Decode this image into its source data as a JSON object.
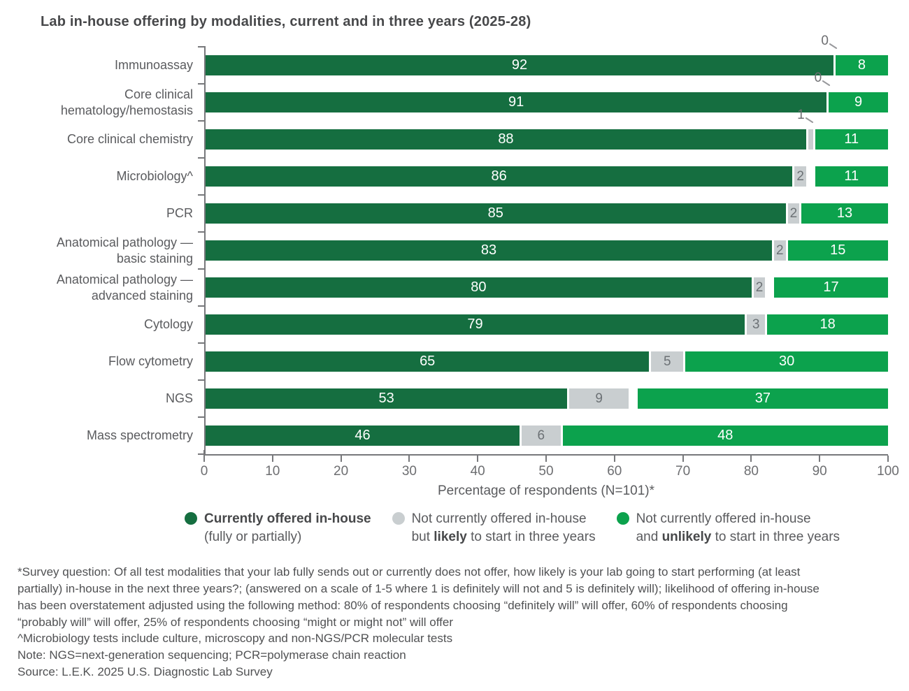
{
  "title": "Lab in-house offering by modalities, current and in three years (2025-28)",
  "chart_data": {
    "type": "bar",
    "orientation": "horizontal",
    "stacked": true,
    "title": "Lab in-house offering by modalities, current and in three years (2025-28)",
    "categories": [
      "Immunoassay",
      "Core clinical\nhematology/hemostasis",
      "Core clinical chemistry",
      "Microbiology^",
      "PCR",
      "Anatomical pathology —\nbasic staining",
      "Anatomical pathology —\nadvanced staining",
      "Cytology",
      "Flow cytometry",
      "NGS",
      "Mass spectrometry"
    ],
    "series": [
      {
        "name": "Currently offered in-house (fully or partially)",
        "color": "#156e40",
        "values": [
          92,
          91,
          88,
          86,
          85,
          83,
          80,
          79,
          65,
          53,
          46
        ]
      },
      {
        "name": "Not currently offered in-house but likely to start in three years",
        "color": "#c9ced0",
        "values": [
          0,
          0,
          1,
          2,
          2,
          2,
          2,
          3,
          5,
          9,
          6
        ]
      },
      {
        "name": "Not currently offered in-house and unlikely to start in three years",
        "color": "#0ca24d",
        "values": [
          8,
          9,
          11,
          11,
          13,
          15,
          17,
          18,
          30,
          37,
          48
        ]
      }
    ],
    "xlabel": "Percentage of respondents (N=101)*",
    "xlim": [
      0,
      100
    ],
    "xticks": [
      0,
      10,
      20,
      30,
      40,
      50,
      60,
      70,
      80,
      90,
      100
    ],
    "grid": false,
    "legend_position": "bottom",
    "value_labels": "inside segments; mid-series values below 2 shown as gray callouts above the bar",
    "small_value_callouts": [
      {
        "category": "Immunoassay",
        "value": 0
      },
      {
        "category": "Core clinical hematology/hemostasis",
        "value": 0
      },
      {
        "category": "Core clinical chemistry",
        "value": 1
      }
    ]
  },
  "legend": {
    "items": [
      {
        "color": "#156e40",
        "lines": [
          [
            {
              "t": "Currently offered in-house",
              "b": true
            }
          ],
          [
            {
              "t": "(fully or partially)",
              "b": false
            }
          ]
        ]
      },
      {
        "color": "#c9ced0",
        "lines": [
          [
            {
              "t": "Not currently offered in-house",
              "b": false
            }
          ],
          [
            {
              "t": "but ",
              "b": false
            },
            {
              "t": "likely",
              "b": true
            },
            {
              "t": " to start in three years",
              "b": false
            }
          ]
        ]
      },
      {
        "color": "#0ca24d",
        "lines": [
          [
            {
              "t": "Not currently offered in-house",
              "b": false
            }
          ],
          [
            {
              "t": "and ",
              "b": false
            },
            {
              "t": "unlikely",
              "b": true
            },
            {
              "t": " to start in three years",
              "b": false
            }
          ]
        ]
      }
    ]
  },
  "footnotes": [
    "*Survey question: Of all test modalities that your lab fully sends out or currently does not offer, how likely is your lab going to start performing (at least partially) in-house in the next three years?; (answered on a scale of 1-5 where 1 is definitely will not and 5 is definitely will); likelihood of offering in-house has been overstatement adjusted using the following method: 80% of respondents choosing “definitely will” will offer, 60% of respondents choosing “probably will” will offer, 25% of respondents choosing “might or might not” will offer",
    "^Microbiology tests include culture, microscopy and non-NGS/PCR molecular tests",
    "Note: NGS=next-generation sequencing; PCR=polymerase chain reaction",
    "Source: L.E.K. 2025 U.S. Diagnostic Lab Survey"
  ]
}
